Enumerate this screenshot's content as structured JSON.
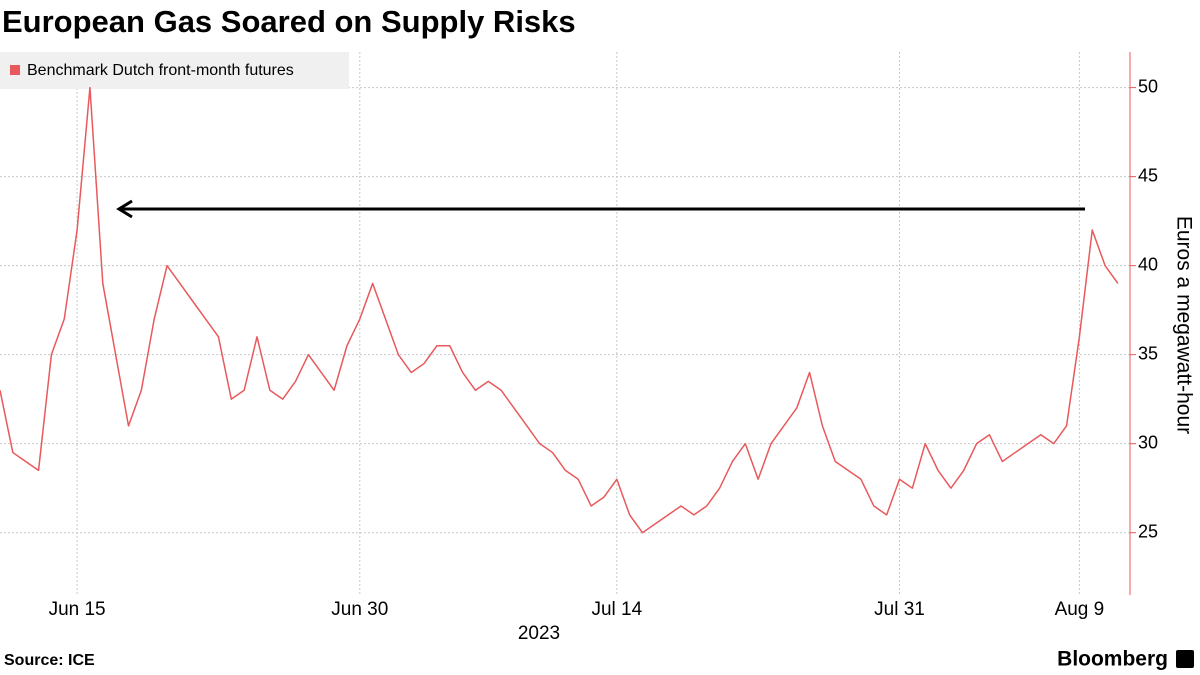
{
  "chart_data": {
    "type": "line",
    "title": "European Gas Soared on Supply Risks",
    "legend_label": "Benchmark Dutch front-month futures",
    "y_label": "Euros a megawatt-hour",
    "x_label": "2023",
    "source": "Source: ICE",
    "brand": "Bloomberg",
    "categories": [
      null,
      null,
      null,
      null,
      null,
      null,
      "Jun 15",
      null,
      null,
      null,
      null,
      null,
      null,
      null,
      null,
      null,
      null,
      null,
      null,
      null,
      null,
      null,
      null,
      null,
      null,
      null,
      null,
      null,
      "Jun 30",
      null,
      null,
      null,
      null,
      null,
      null,
      null,
      null,
      null,
      null,
      null,
      null,
      null,
      null,
      null,
      null,
      null,
      null,
      null,
      "Jul 14",
      null,
      null,
      null,
      null,
      null,
      null,
      null,
      null,
      null,
      null,
      null,
      null,
      null,
      null,
      null,
      null,
      null,
      null,
      null,
      null,
      null,
      "Jul 31",
      null,
      null,
      null,
      null,
      null,
      null,
      null,
      null,
      null,
      null,
      null,
      null,
      null,
      "Aug 9",
      null,
      null,
      null
    ],
    "series": [
      {
        "name": "Benchmark Dutch front-month futures",
        "color": "#e8595c",
        "values": [
          33,
          29.5,
          29,
          28.5,
          35,
          37,
          42,
          50,
          39,
          35,
          31,
          33,
          37,
          40,
          39,
          38,
          37,
          36,
          32.5,
          33,
          36,
          33,
          32.5,
          33.5,
          35,
          34,
          33,
          35.5,
          37,
          39,
          37,
          35,
          34,
          34.5,
          35.5,
          35.5,
          34,
          33,
          33.5,
          33,
          32,
          31,
          30,
          29.5,
          28.5,
          28,
          26.5,
          27,
          28,
          26,
          25,
          25.5,
          26,
          26.5,
          26,
          26.5,
          27.5,
          29,
          30,
          28,
          30,
          31,
          32,
          34,
          31,
          29,
          28.5,
          28,
          26.5,
          26,
          28,
          27.5,
          30,
          28.5,
          27.5,
          28.5,
          30,
          30.5,
          29,
          29.5,
          30,
          30.5,
          30,
          31,
          36,
          42,
          40,
          39
        ]
      }
    ],
    "ylim": [
      21.5,
      52
    ],
    "yticks": [
      25,
      30,
      35,
      40,
      45,
      50
    ],
    "grid": true
  }
}
